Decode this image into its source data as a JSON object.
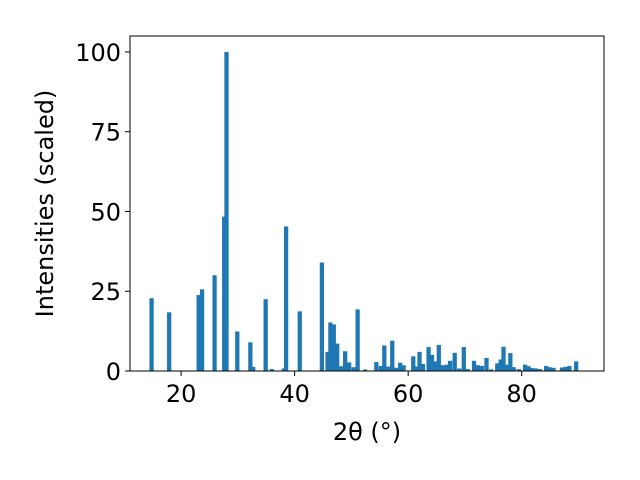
{
  "chart_data": {
    "type": "bar",
    "xlabel": "2θ (°)",
    "ylabel": "Intensities (scaled)",
    "xlim": [
      11,
      94.5
    ],
    "ylim": [
      0,
      105
    ],
    "xticks": [
      20,
      40,
      60,
      80
    ],
    "yticks": [
      0,
      25,
      50,
      75,
      100
    ],
    "grid": false,
    "bar_color": "#1f77b4",
    "bar_width": 0.75,
    "bars": [
      {
        "x": 14.8,
        "y": 22.8
      },
      {
        "x": 17.9,
        "y": 18.4
      },
      {
        "x": 23.1,
        "y": 23.8
      },
      {
        "x": 23.7,
        "y": 25.6
      },
      {
        "x": 25.9,
        "y": 30.0
      },
      {
        "x": 27.6,
        "y": 48.4
      },
      {
        "x": 28.0,
        "y": 100.0
      },
      {
        "x": 29.9,
        "y": 12.4
      },
      {
        "x": 32.2,
        "y": 9.0
      },
      {
        "x": 32.7,
        "y": 1.3
      },
      {
        "x": 34.9,
        "y": 22.5
      },
      {
        "x": 36.0,
        "y": 0.6
      },
      {
        "x": 38.1,
        "y": 0.8
      },
      {
        "x": 38.5,
        "y": 45.3
      },
      {
        "x": 40.9,
        "y": 18.7
      },
      {
        "x": 44.8,
        "y": 34.0
      },
      {
        "x": 45.8,
        "y": 6.0
      },
      {
        "x": 46.3,
        "y": 15.2
      },
      {
        "x": 46.9,
        "y": 14.6
      },
      {
        "x": 47.5,
        "y": 8.6
      },
      {
        "x": 48.2,
        "y": 1.5
      },
      {
        "x": 48.9,
        "y": 6.2
      },
      {
        "x": 49.6,
        "y": 2.7
      },
      {
        "x": 50.4,
        "y": 1.2
      },
      {
        "x": 51.1,
        "y": 19.3
      },
      {
        "x": 52.4,
        "y": 0.5
      },
      {
        "x": 54.4,
        "y": 2.8
      },
      {
        "x": 55.2,
        "y": 1.6
      },
      {
        "x": 55.8,
        "y": 8.0
      },
      {
        "x": 56.5,
        "y": 1.4
      },
      {
        "x": 57.2,
        "y": 9.5
      },
      {
        "x": 57.9,
        "y": 1.0
      },
      {
        "x": 58.6,
        "y": 2.6
      },
      {
        "x": 59.2,
        "y": 1.8
      },
      {
        "x": 60.9,
        "y": 4.6
      },
      {
        "x": 61.5,
        "y": 1.4
      },
      {
        "x": 62.0,
        "y": 6.0
      },
      {
        "x": 62.6,
        "y": 2.2
      },
      {
        "x": 63.6,
        "y": 7.5
      },
      {
        "x": 64.2,
        "y": 5.0
      },
      {
        "x": 64.8,
        "y": 3.0
      },
      {
        "x": 65.4,
        "y": 8.2
      },
      {
        "x": 66.1,
        "y": 1.8
      },
      {
        "x": 66.8,
        "y": 2.0
      },
      {
        "x": 67.4,
        "y": 3.2
      },
      {
        "x": 68.2,
        "y": 5.7
      },
      {
        "x": 69.0,
        "y": 0.8
      },
      {
        "x": 69.8,
        "y": 7.5
      },
      {
        "x": 70.5,
        "y": 0.6
      },
      {
        "x": 71.6,
        "y": 3.2
      },
      {
        "x": 72.3,
        "y": 1.8
      },
      {
        "x": 73.0,
        "y": 1.6
      },
      {
        "x": 73.8,
        "y": 4.1
      },
      {
        "x": 74.6,
        "y": 0.5
      },
      {
        "x": 75.7,
        "y": 2.4
      },
      {
        "x": 76.3,
        "y": 3.6
      },
      {
        "x": 76.8,
        "y": 7.6
      },
      {
        "x": 77.4,
        "y": 2.0
      },
      {
        "x": 78.0,
        "y": 5.6
      },
      {
        "x": 78.6,
        "y": 1.2
      },
      {
        "x": 79.5,
        "y": 0.6
      },
      {
        "x": 80.6,
        "y": 2.0
      },
      {
        "x": 81.2,
        "y": 1.5
      },
      {
        "x": 81.9,
        "y": 0.9
      },
      {
        "x": 82.5,
        "y": 0.8
      },
      {
        "x": 83.2,
        "y": 0.6
      },
      {
        "x": 84.3,
        "y": 1.6
      },
      {
        "x": 84.9,
        "y": 1.2
      },
      {
        "x": 85.6,
        "y": 1.0
      },
      {
        "x": 87.1,
        "y": 1.1
      },
      {
        "x": 87.7,
        "y": 1.3
      },
      {
        "x": 88.4,
        "y": 1.6
      },
      {
        "x": 89.6,
        "y": 3.0
      }
    ]
  }
}
